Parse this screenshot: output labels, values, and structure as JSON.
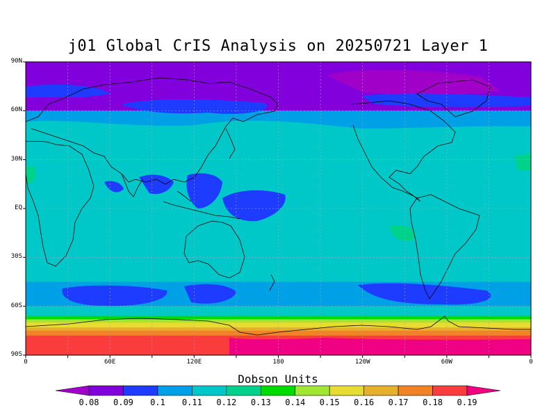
{
  "title": "j01 Global CrIS Analysis on 20250721 Layer 1",
  "units": "Dobson Units",
  "lat_labels": [
    "90N",
    "60N",
    "30N",
    "EQ",
    "30S",
    "60S",
    "90S"
  ],
  "lon_labels": [
    "0",
    "60E",
    "120E",
    "180",
    "120W",
    "60W",
    "0"
  ],
  "colorbar": {
    "labels": [
      "0.08",
      "0.09",
      "0.1",
      "0.11",
      "0.12",
      "0.13",
      "0.14",
      "0.15",
      "0.16",
      "0.17",
      "0.18",
      "0.19"
    ],
    "colors": [
      "#a000c8",
      "#8200dc",
      "#1e3cff",
      "#00a0e6",
      "#00c8c8",
      "#00d28c",
      "#00dc00",
      "#a0e632",
      "#e6dc32",
      "#e6af2d",
      "#f08228",
      "#fa3c3c",
      "#f00082"
    ]
  },
  "field_bands": [
    {
      "lat_to": 60,
      "color": "#8200dc"
    },
    {
      "lat_to": 45,
      "color": "#00a0e6"
    },
    {
      "lat_to": -45,
      "color": "#00c8c8"
    },
    {
      "lat_to": -60,
      "color": "#00a0e6"
    },
    {
      "lat_to": -66,
      "color": "#00c8c8"
    },
    {
      "lat_to": -68,
      "color": "#00dc00"
    },
    {
      "lat_to": -70,
      "color": "#a0e632"
    },
    {
      "lat_to": -73,
      "color": "#e6dc32"
    },
    {
      "lat_to": -75,
      "color": "#e6af2d"
    },
    {
      "lat_to": -78,
      "color": "#f08228"
    },
    {
      "lat_to": -90,
      "color": "#fa3c3c"
    }
  ]
}
